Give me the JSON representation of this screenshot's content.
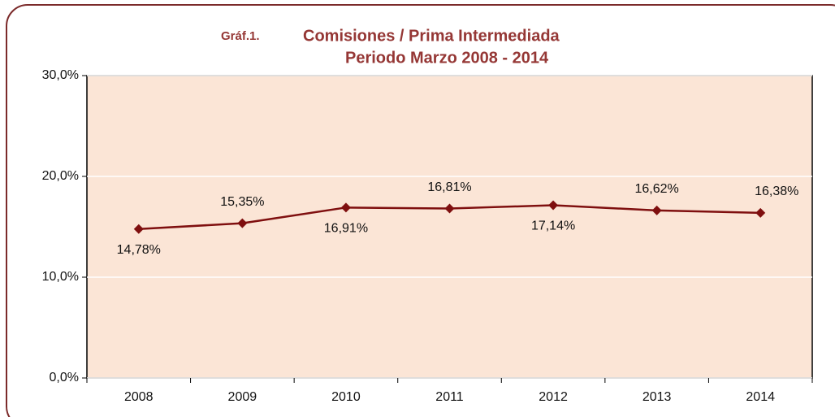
{
  "chart_data": {
    "type": "line",
    "label": "Gráf.1.",
    "title": "Comisiones / Prima Intermediada",
    "subtitle": "Periodo Marzo 2008 - 2014",
    "categories": [
      "2008",
      "2009",
      "2010",
      "2011",
      "2012",
      "2013",
      "2014"
    ],
    "values": [
      14.78,
      15.35,
      16.91,
      16.81,
      17.14,
      16.62,
      16.38
    ],
    "value_labels": [
      "14,78%",
      "15,35%",
      "16,91%",
      "16,81%",
      "17,14%",
      "16,62%",
      "16,38%"
    ],
    "color": "#7f0f0f",
    "ylim": [
      0,
      30
    ],
    "yticks": [
      {
        "value": 0,
        "label": "0,0%"
      },
      {
        "value": 10,
        "label": "10,0%"
      },
      {
        "value": 20,
        "label": "20,0%"
      },
      {
        "value": 30,
        "label": "30,0%"
      }
    ],
    "grid": true
  }
}
